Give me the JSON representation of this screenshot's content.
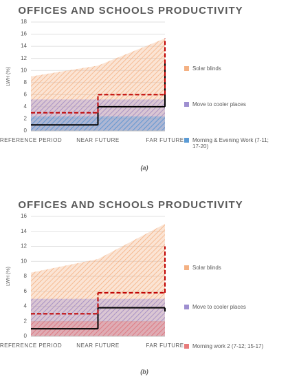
{
  "chart_data": [
    {
      "type": "area",
      "title": "OFFICES AND SCHOOLS PRODUCTIVITY",
      "y_label": "LWH (%)",
      "caption": "(a)",
      "categories": [
        "REFERENCE PERIOD",
        "NEAR FUTURE",
        "FAR FUTURE"
      ],
      "ylim": [
        0,
        18
      ],
      "yticks": [
        0,
        2,
        4,
        6,
        8,
        10,
        12,
        14,
        16,
        18
      ],
      "grid": true,
      "series": [
        {
          "name": "Solar blinds",
          "color": "#f4b183",
          "values": [
            9,
            10.8,
            15.3
          ]
        },
        {
          "name": "Move to cooler places",
          "color": "#9e8fd0",
          "values": [
            5.2,
            5.2,
            5.2
          ]
        },
        {
          "name": "Morning & Evening Work (7-11; 17-20)",
          "color": "#5b9bd5",
          "values": [
            2.4,
            2.4,
            2.4
          ]
        }
      ],
      "lines": [
        {
          "color": "#000000",
          "values": [
            1,
            4,
            11.5
          ]
        },
        {
          "color": "#c00000",
          "dash": true,
          "values": [
            3,
            6,
            15.3
          ]
        }
      ]
    },
    {
      "type": "area",
      "title": "OFFICES AND SCHOOLS PRODUCTIVITY",
      "y_label": "LWH (%)",
      "caption": "(b)",
      "categories": [
        "REFERENCE PERIOD",
        "NEAR FUTURE",
        "FAR FUTURE"
      ],
      "ylim": [
        0,
        16
      ],
      "yticks": [
        0,
        2,
        4,
        6,
        8,
        10,
        12,
        14,
        16
      ],
      "grid": true,
      "series": [
        {
          "name": "Solar blinds",
          "color": "#f4b183",
          "values": [
            8.5,
            10.3,
            15
          ]
        },
        {
          "name": "Move to cooler places",
          "color": "#9e8fd0",
          "values": [
            5,
            5,
            5
          ]
        },
        {
          "name": "Morning work 2 (7-12; 15-17)",
          "color": "#e87b7b",
          "values": [
            2,
            2,
            2
          ]
        }
      ],
      "lines": [
        {
          "color": "#000000",
          "values": [
            1,
            3.8,
            3.3
          ]
        },
        {
          "color": "#c00000",
          "dash": true,
          "values": [
            3,
            5.8,
            12
          ]
        }
      ]
    }
  ]
}
